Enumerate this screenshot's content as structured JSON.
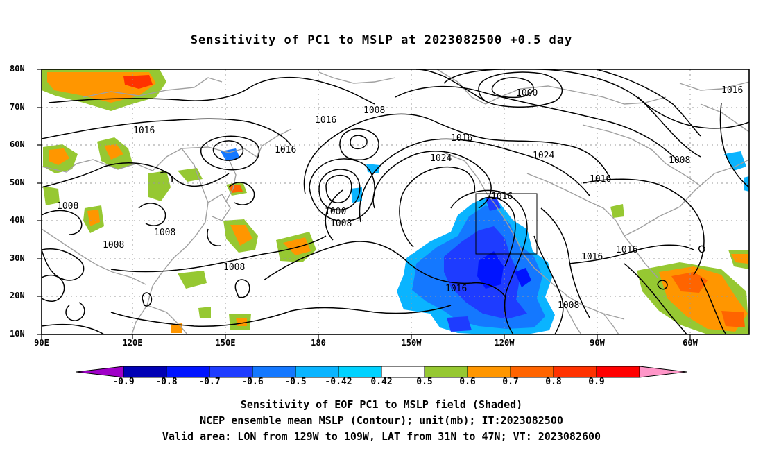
{
  "title": "Sensitivity of PC1 to MSLP at 2023082500 +0.5 day",
  "lat_labels": [
    "80N",
    "70N",
    "60N",
    "50N",
    "40N",
    "30N",
    "20N",
    "10N"
  ],
  "lon_labels": [
    "90E",
    "120E",
    "150E",
    "180",
    "150W",
    "120W",
    "90W",
    "60W"
  ],
  "contour_labels": [
    {
      "text": "1008"
    },
    {
      "text": "1016"
    },
    {
      "text": "1000"
    },
    {
      "text": "1016"
    },
    {
      "text": "1016"
    },
    {
      "text": "1008"
    },
    {
      "text": "1016"
    },
    {
      "text": "1024"
    },
    {
      "text": "1024"
    },
    {
      "text": "1008"
    },
    {
      "text": "1016"
    },
    {
      "text": "1016"
    },
    {
      "text": "1008"
    },
    {
      "text": "1000"
    },
    {
      "text": "1008"
    },
    {
      "text": "1008"
    },
    {
      "text": "1008"
    },
    {
      "text": "1016"
    },
    {
      "text": "1016"
    },
    {
      "text": "1016"
    },
    {
      "text": "1016"
    },
    {
      "text": "1008"
    }
  ],
  "colorbar": {
    "labels": [
      "-0.9",
      "-0.8",
      "-0.7",
      "-0.6",
      "-0.5",
      "-0.42",
      "0.42",
      "0.5",
      "0.6",
      "0.7",
      "0.8",
      "0.9"
    ],
    "colors": [
      "#a000c8",
      "#0000b4",
      "#0014ff",
      "#1e3cff",
      "#1478ff",
      "#0ab4ff",
      "#00d2ff",
      "#ffffff",
      "#96c832",
      "#ff9600",
      "#ff6400",
      "#ff3200",
      "#ff0000",
      "#ff96c8"
    ]
  },
  "captions": [
    "Sensitivity of EOF PC1 to MSLP field (Shaded)",
    "NCEP ensemble mean MSLP (Contour); unit(mb); IT:2023082500",
    "Valid area: LON from 129W to 109W, LAT from 31N to 47N; VT: 2023082600"
  ],
  "valid_area": {
    "lon": [
      -129,
      -109
    ],
    "lat": [
      31,
      47
    ]
  }
}
